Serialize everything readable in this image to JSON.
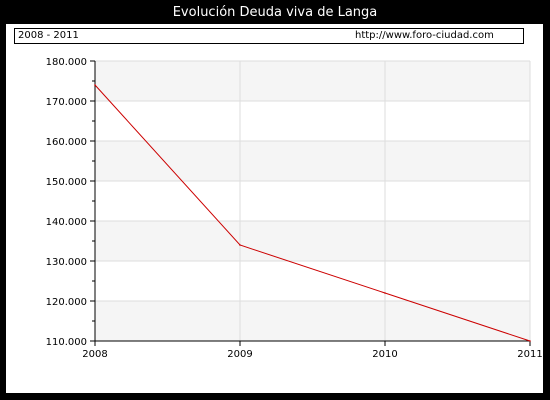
{
  "chart_data": {
    "type": "line",
    "title": "Evolución Deuda viva de Langa",
    "period_label": "2008 - 2011",
    "source": "http://www.foro-ciudad.com",
    "xlabel": "",
    "ylabel": "",
    "x": [
      2008,
      2009,
      2010,
      2011
    ],
    "x_tick_labels": [
      "2008",
      "2009",
      "2010",
      "2011"
    ],
    "series": [
      {
        "values": [
          174000,
          134000,
          122000,
          110000
        ],
        "color": "#cc0000"
      }
    ],
    "ylim": [
      110000,
      180000
    ],
    "y_ticks": [
      110000,
      120000,
      130000,
      140000,
      150000,
      160000,
      170000,
      180000
    ],
    "y_tick_labels": [
      "110.000",
      "120.000",
      "130.000",
      "140.000",
      "150.000",
      "160.000",
      "170.000",
      "180.000"
    ],
    "grid": true,
    "band_colors": [
      "#f5f5f5",
      "#ffffff"
    ]
  }
}
